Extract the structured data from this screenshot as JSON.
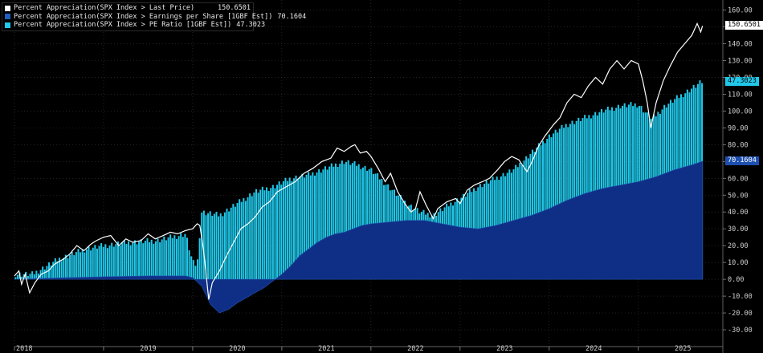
{
  "chart_data": {
    "type": "area",
    "x_years": [
      "2018",
      "2019",
      "2020",
      "2021",
      "2022",
      "2023",
      "2024",
      "2025"
    ],
    "y_ticks": [
      "160.00",
      "150.00",
      "140.00",
      "130.00",
      "120.00",
      "110.00",
      "100.00",
      "90.00",
      "80.00",
      "70.00",
      "60.00",
      "50.00",
      "40.00",
      "30.00",
      "20.00",
      "10.00",
      "0.00",
      "-10.00",
      "-20.00",
      "-30.00"
    ],
    "ylim": [
      -40,
      166
    ],
    "xlim": [
      2018.0,
      2025.75
    ],
    "grid": true,
    "legend_position": "top-left",
    "series": [
      {
        "name": "Percent Appreciation(SPX Index > Last Price)",
        "last_value": "150.6501",
        "color": "#ffffff",
        "style": "line",
        "points": [
          [
            2018.0,
            2
          ],
          [
            2018.05,
            5
          ],
          [
            2018.08,
            -3
          ],
          [
            2018.12,
            3
          ],
          [
            2018.17,
            -8
          ],
          [
            2018.23,
            -2
          ],
          [
            2018.3,
            3
          ],
          [
            2018.38,
            5
          ],
          [
            2018.45,
            9
          ],
          [
            2018.55,
            12
          ],
          [
            2018.62,
            15
          ],
          [
            2018.7,
            20
          ],
          [
            2018.78,
            17
          ],
          [
            2018.86,
            21
          ],
          [
            2018.92,
            23
          ],
          [
            2019.0,
            25
          ],
          [
            2019.08,
            26
          ],
          [
            2019.17,
            20
          ],
          [
            2019.25,
            24
          ],
          [
            2019.33,
            22
          ],
          [
            2019.42,
            23
          ],
          [
            2019.5,
            27
          ],
          [
            2019.58,
            24
          ],
          [
            2019.67,
            26
          ],
          [
            2019.75,
            28
          ],
          [
            2019.83,
            27
          ],
          [
            2019.92,
            29
          ],
          [
            2020.0,
            30
          ],
          [
            2020.05,
            33
          ],
          [
            2020.08,
            32
          ],
          [
            2020.12,
            18
          ],
          [
            2020.18,
            -12
          ],
          [
            2020.22,
            -2
          ],
          [
            2020.3,
            5
          ],
          [
            2020.38,
            14
          ],
          [
            2020.46,
            22
          ],
          [
            2020.54,
            30
          ],
          [
            2020.62,
            33
          ],
          [
            2020.7,
            37
          ],
          [
            2020.78,
            43
          ],
          [
            2020.86,
            46
          ],
          [
            2020.95,
            52
          ],
          [
            2021.05,
            55
          ],
          [
            2021.15,
            58
          ],
          [
            2021.25,
            63
          ],
          [
            2021.35,
            66
          ],
          [
            2021.45,
            70
          ],
          [
            2021.55,
            72
          ],
          [
            2021.62,
            78
          ],
          [
            2021.7,
            76
          ],
          [
            2021.78,
            79
          ],
          [
            2021.82,
            80
          ],
          [
            2021.88,
            75
          ],
          [
            2021.95,
            76
          ],
          [
            2022.0,
            73
          ],
          [
            2022.08,
            66
          ],
          [
            2022.16,
            58
          ],
          [
            2022.22,
            63
          ],
          [
            2022.3,
            52
          ],
          [
            2022.38,
            45
          ],
          [
            2022.45,
            40
          ],
          [
            2022.5,
            42
          ],
          [
            2022.55,
            52
          ],
          [
            2022.62,
            44
          ],
          [
            2022.7,
            36
          ],
          [
            2022.75,
            42
          ],
          [
            2022.85,
            46
          ],
          [
            2022.95,
            48
          ],
          [
            2023.0,
            45
          ],
          [
            2023.08,
            53
          ],
          [
            2023.16,
            56
          ],
          [
            2023.25,
            58
          ],
          [
            2023.33,
            60
          ],
          [
            2023.42,
            65
          ],
          [
            2023.5,
            70
          ],
          [
            2023.58,
            73
          ],
          [
            2023.66,
            71
          ],
          [
            2023.75,
            64
          ],
          [
            2023.8,
            69
          ],
          [
            2023.88,
            79
          ],
          [
            2023.95,
            85
          ],
          [
            2024.05,
            92
          ],
          [
            2024.12,
            96
          ],
          [
            2024.2,
            105
          ],
          [
            2024.28,
            110
          ],
          [
            2024.36,
            108
          ],
          [
            2024.44,
            115
          ],
          [
            2024.52,
            120
          ],
          [
            2024.6,
            116
          ],
          [
            2024.68,
            125
          ],
          [
            2024.76,
            130
          ],
          [
            2024.84,
            125
          ],
          [
            2024.92,
            130
          ],
          [
            2025.0,
            128
          ],
          [
            2025.05,
            118
          ],
          [
            2025.1,
            105
          ],
          [
            2025.14,
            90
          ],
          [
            2025.2,
            105
          ],
          [
            2025.28,
            118
          ],
          [
            2025.36,
            127
          ],
          [
            2025.44,
            135
          ],
          [
            2025.52,
            140
          ],
          [
            2025.6,
            145
          ],
          [
            2025.66,
            152
          ],
          [
            2025.7,
            147
          ],
          [
            2025.72,
            150.65
          ]
        ]
      },
      {
        "name": "Percent Appreciation(SPX Index > Earnings per Share [1GBF Est])",
        "last_value": "70.1604",
        "color": "#1e5fbf",
        "style": "area",
        "points": [
          [
            2018.0,
            0
          ],
          [
            2018.3,
            0.5
          ],
          [
            2018.6,
            1
          ],
          [
            2019.0,
            1.5
          ],
          [
            2019.5,
            2
          ],
          [
            2019.92,
            2
          ],
          [
            2020.0,
            1
          ],
          [
            2020.1,
            -4
          ],
          [
            2020.2,
            -15
          ],
          [
            2020.3,
            -20
          ],
          [
            2020.4,
            -18
          ],
          [
            2020.5,
            -14
          ],
          [
            2020.6,
            -11
          ],
          [
            2020.7,
            -8
          ],
          [
            2020.8,
            -5
          ],
          [
            2020.9,
            -1
          ],
          [
            2021.0,
            3
          ],
          [
            2021.1,
            8
          ],
          [
            2021.2,
            14
          ],
          [
            2021.3,
            18
          ],
          [
            2021.4,
            22
          ],
          [
            2021.5,
            25
          ],
          [
            2021.6,
            27
          ],
          [
            2021.7,
            28
          ],
          [
            2021.8,
            30
          ],
          [
            2021.9,
            32
          ],
          [
            2022.0,
            33
          ],
          [
            2022.2,
            34
          ],
          [
            2022.4,
            35
          ],
          [
            2022.6,
            35
          ],
          [
            2022.8,
            33
          ],
          [
            2023.0,
            31
          ],
          [
            2023.2,
            30
          ],
          [
            2023.4,
            32
          ],
          [
            2023.6,
            35
          ],
          [
            2023.8,
            38
          ],
          [
            2024.0,
            42
          ],
          [
            2024.2,
            47
          ],
          [
            2024.4,
            51
          ],
          [
            2024.6,
            54
          ],
          [
            2024.8,
            56
          ],
          [
            2025.0,
            58
          ],
          [
            2025.2,
            61
          ],
          [
            2025.4,
            65
          ],
          [
            2025.6,
            68
          ],
          [
            2025.72,
            70.16
          ]
        ]
      },
      {
        "name": "Percent Appreciation(SPX Index > PE Ratio [1GBF Est])",
        "last_value": "47.3023",
        "color": "#20c8ea",
        "style": "bars",
        "total_points": [
          [
            2018.0,
            3
          ],
          [
            2018.2,
            3
          ],
          [
            2018.5,
            12
          ],
          [
            2018.8,
            18
          ],
          [
            2019.0,
            20
          ],
          [
            2019.3,
            22
          ],
          [
            2019.6,
            23
          ],
          [
            2019.92,
            27
          ],
          [
            2020.0,
            10
          ],
          [
            2020.05,
            8
          ],
          [
            2020.1,
            40
          ],
          [
            2020.3,
            38
          ],
          [
            2020.5,
            45
          ],
          [
            2020.7,
            52
          ],
          [
            2020.9,
            55
          ],
          [
            2021.1,
            60
          ],
          [
            2021.3,
            62
          ],
          [
            2021.5,
            66
          ],
          [
            2021.7,
            70
          ],
          [
            2021.85,
            68
          ],
          [
            2022.0,
            65
          ],
          [
            2022.2,
            55
          ],
          [
            2022.4,
            45
          ],
          [
            2022.55,
            40
          ],
          [
            2022.7,
            38
          ],
          [
            2022.9,
            45
          ],
          [
            2023.0,
            48
          ],
          [
            2023.2,
            55
          ],
          [
            2023.4,
            60
          ],
          [
            2023.6,
            65
          ],
          [
            2023.8,
            75
          ],
          [
            2024.0,
            85
          ],
          [
            2024.2,
            92
          ],
          [
            2024.4,
            96
          ],
          [
            2024.6,
            100
          ],
          [
            2024.8,
            103
          ],
          [
            2025.0,
            104
          ],
          [
            2025.15,
            95
          ],
          [
            2025.3,
            103
          ],
          [
            2025.5,
            110
          ],
          [
            2025.72,
            117.46
          ]
        ]
      }
    ]
  }
}
